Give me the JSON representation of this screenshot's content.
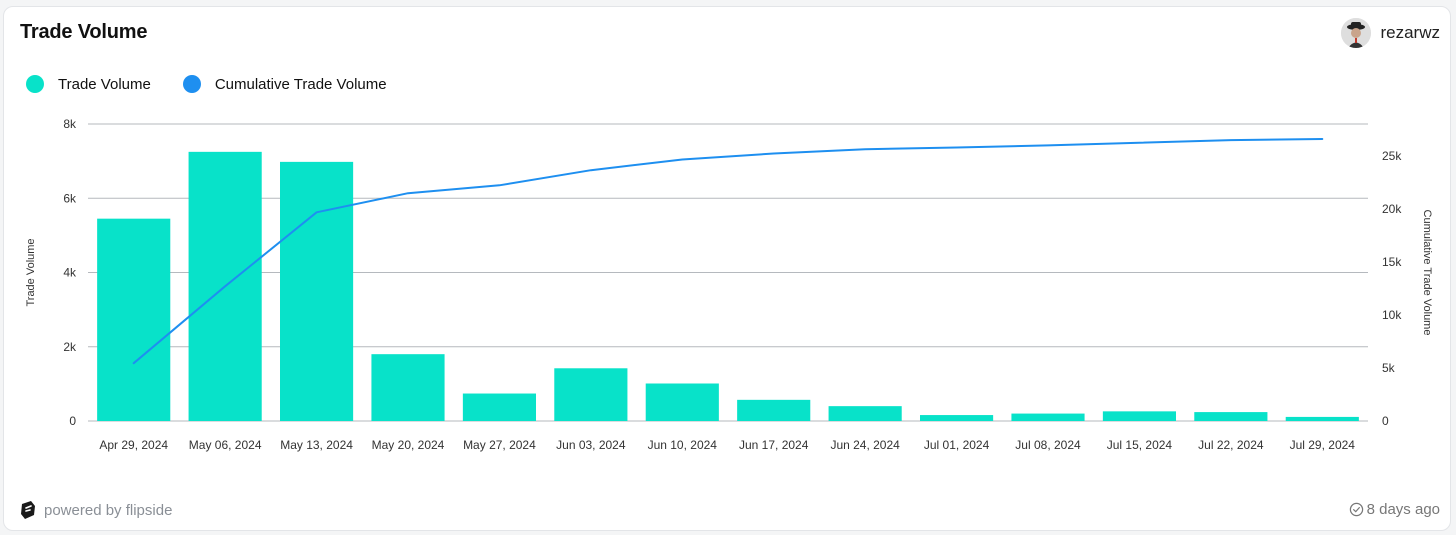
{
  "header": {
    "title": "Trade Volume",
    "username": "rezarwz"
  },
  "footer": {
    "powered_by": "powered by flipside",
    "timestamp": "8 days ago"
  },
  "colors": {
    "bar": "#08e2c9",
    "line": "#1e8ff0",
    "grid": "#b5b9be",
    "axis_text": "#333333"
  },
  "chart_data": {
    "type": "bar",
    "title": "Trade Volume",
    "categories": [
      "Apr 29, 2024",
      "May 06, 2024",
      "May 13, 2024",
      "May 20, 2024",
      "May 27, 2024",
      "Jun 03, 2024",
      "Jun 10, 2024",
      "Jun 17, 2024",
      "Jun 24, 2024",
      "Jul 01, 2024",
      "Jul 08, 2024",
      "Jul 15, 2024",
      "Jul 22, 2024",
      "Jul 29, 2024"
    ],
    "series": [
      {
        "name": "Trade Volume",
        "type": "bar",
        "axis": "left",
        "values": [
          5450,
          7250,
          6980,
          1800,
          740,
          1420,
          1010,
          570,
          400,
          160,
          200,
          260,
          240,
          110
        ]
      },
      {
        "name": "Cumulative Trade Volume",
        "type": "line",
        "axis": "right",
        "values": [
          5450,
          12700,
          19680,
          21480,
          22220,
          23640,
          24650,
          25220,
          25620,
          25780,
          25980,
          26240,
          26480,
          26590
        ]
      }
    ],
    "ylabel_left": "Trade Volume",
    "ylabel_right": "Cumulative Trade Volume",
    "y_left": {
      "range": [
        0,
        8000
      ],
      "ticks": [
        0,
        2000,
        4000,
        6000,
        8000
      ],
      "tick_labels": [
        "0",
        "2k",
        "4k",
        "6k",
        "8k"
      ]
    },
    "y_right": {
      "range": [
        0,
        28000
      ],
      "ticks": [
        0,
        5000,
        10000,
        15000,
        20000,
        25000
      ],
      "tick_labels": [
        "0",
        "5k",
        "10k",
        "15k",
        "20k",
        "25k"
      ]
    },
    "grid": true,
    "legend": "top-left"
  }
}
